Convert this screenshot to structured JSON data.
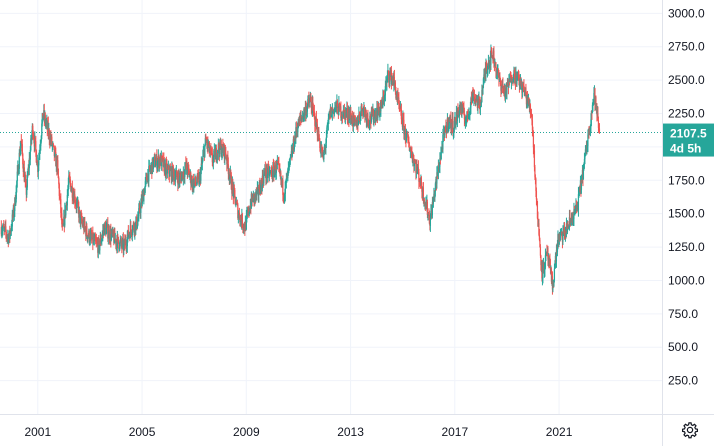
{
  "colors": {
    "up": "#26a69a",
    "down": "#ef5350",
    "grid": "#f0f3fa",
    "axis": "#e0e3eb",
    "last_price_line": "#26a69a",
    "badge_bg": "#26a69a",
    "text": "#131722"
  },
  "price_badge": {
    "price": "2107.5",
    "countdown": "4d 5h"
  },
  "settings": {
    "icon": "gear-icon"
  },
  "chart_data": {
    "type": "candlestick",
    "x_ticks": [
      "2001",
      "2005",
      "2009",
      "2013",
      "2017",
      "2021"
    ],
    "y_ticks": [
      "250.0",
      "500.0",
      "750.0",
      "1000.0",
      "1250.0",
      "1500.0",
      "1750.0",
      "2000.0",
      "2250.0",
      "2500.0",
      "2750.0",
      "3000.0"
    ],
    "ylim": [
      0,
      3100
    ],
    "xlim": [
      1999.55,
      2024.95
    ],
    "grid": true,
    "last_price": 2107.5,
    "points": [
      [
        1999.6,
        1400
      ],
      [
        1999.9,
        1320
      ],
      [
        2000.1,
        1540
      ],
      [
        2000.35,
        2050
      ],
      [
        2000.55,
        1650
      ],
      [
        2000.8,
        2150
      ],
      [
        2001.0,
        1850
      ],
      [
        2001.2,
        2250
      ],
      [
        2001.5,
        2050
      ],
      [
        2001.75,
        1850
      ],
      [
        2001.95,
        1350
      ],
      [
        2002.2,
        1750
      ],
      [
        2002.45,
        1600
      ],
      [
        2002.65,
        1450
      ],
      [
        2002.9,
        1350
      ],
      [
        2003.1,
        1300
      ],
      [
        2003.35,
        1250
      ],
      [
        2003.55,
        1400
      ],
      [
        2003.75,
        1350
      ],
      [
        2004.0,
        1300
      ],
      [
        2004.3,
        1250
      ],
      [
        2004.55,
        1380
      ],
      [
        2004.8,
        1430
      ],
      [
        2005.0,
        1600
      ],
      [
        2005.2,
        1780
      ],
      [
        2005.45,
        1880
      ],
      [
        2005.7,
        1900
      ],
      [
        2005.95,
        1820
      ],
      [
        2006.2,
        1800
      ],
      [
        2006.45,
        1760
      ],
      [
        2006.7,
        1850
      ],
      [
        2006.95,
        1720
      ],
      [
        2007.2,
        1750
      ],
      [
        2007.45,
        2050
      ],
      [
        2007.7,
        1900
      ],
      [
        2007.95,
        2000
      ],
      [
        2008.2,
        1960
      ],
      [
        2008.45,
        1700
      ],
      [
        2008.7,
        1500
      ],
      [
        2008.95,
        1400
      ],
      [
        2009.2,
        1600
      ],
      [
        2009.45,
        1650
      ],
      [
        2009.7,
        1800
      ],
      [
        2009.95,
        1800
      ],
      [
        2010.2,
        1850
      ],
      [
        2010.45,
        1650
      ],
      [
        2010.7,
        1900
      ],
      [
        2010.95,
        2150
      ],
      [
        2011.2,
        2250
      ],
      [
        2011.45,
        2350
      ],
      [
        2011.7,
        2150
      ],
      [
        2011.95,
        1900
      ],
      [
        2012.2,
        2250
      ],
      [
        2012.45,
        2300
      ],
      [
        2012.7,
        2250
      ],
      [
        2012.95,
        2250
      ],
      [
        2013.2,
        2150
      ],
      [
        2013.45,
        2300
      ],
      [
        2013.7,
        2200
      ],
      [
        2013.95,
        2250
      ],
      [
        2014.2,
        2300
      ],
      [
        2014.45,
        2550
      ],
      [
        2014.65,
        2500
      ],
      [
        2014.85,
        2300
      ],
      [
        2015.1,
        2100
      ],
      [
        2015.35,
        1950
      ],
      [
        2015.6,
        1800
      ],
      [
        2015.85,
        1600
      ],
      [
        2016.05,
        1450
      ],
      [
        2016.3,
        1750
      ],
      [
        2016.55,
        2050
      ],
      [
        2016.75,
        2200
      ],
      [
        2016.95,
        2150
      ],
      [
        2017.2,
        2300
      ],
      [
        2017.45,
        2200
      ],
      [
        2017.7,
        2400
      ],
      [
        2017.95,
        2300
      ],
      [
        2018.2,
        2600
      ],
      [
        2018.45,
        2700
      ],
      [
        2018.7,
        2500
      ],
      [
        2018.95,
        2400
      ],
      [
        2019.2,
        2550
      ],
      [
        2019.45,
        2500
      ],
      [
        2019.7,
        2400
      ],
      [
        2019.95,
        2250
      ],
      [
        2020.15,
        1550
      ],
      [
        2020.35,
        1050
      ],
      [
        2020.55,
        1200
      ],
      [
        2020.75,
        950
      ],
      [
        2020.95,
        1300
      ],
      [
        2021.2,
        1350
      ],
      [
        2021.45,
        1450
      ],
      [
        2021.7,
        1550
      ],
      [
        2021.95,
        1850
      ],
      [
        2022.2,
        2200
      ],
      [
        2022.35,
        2400
      ],
      [
        2022.45,
        2250
      ],
      [
        2022.55,
        2107.5
      ]
    ]
  }
}
